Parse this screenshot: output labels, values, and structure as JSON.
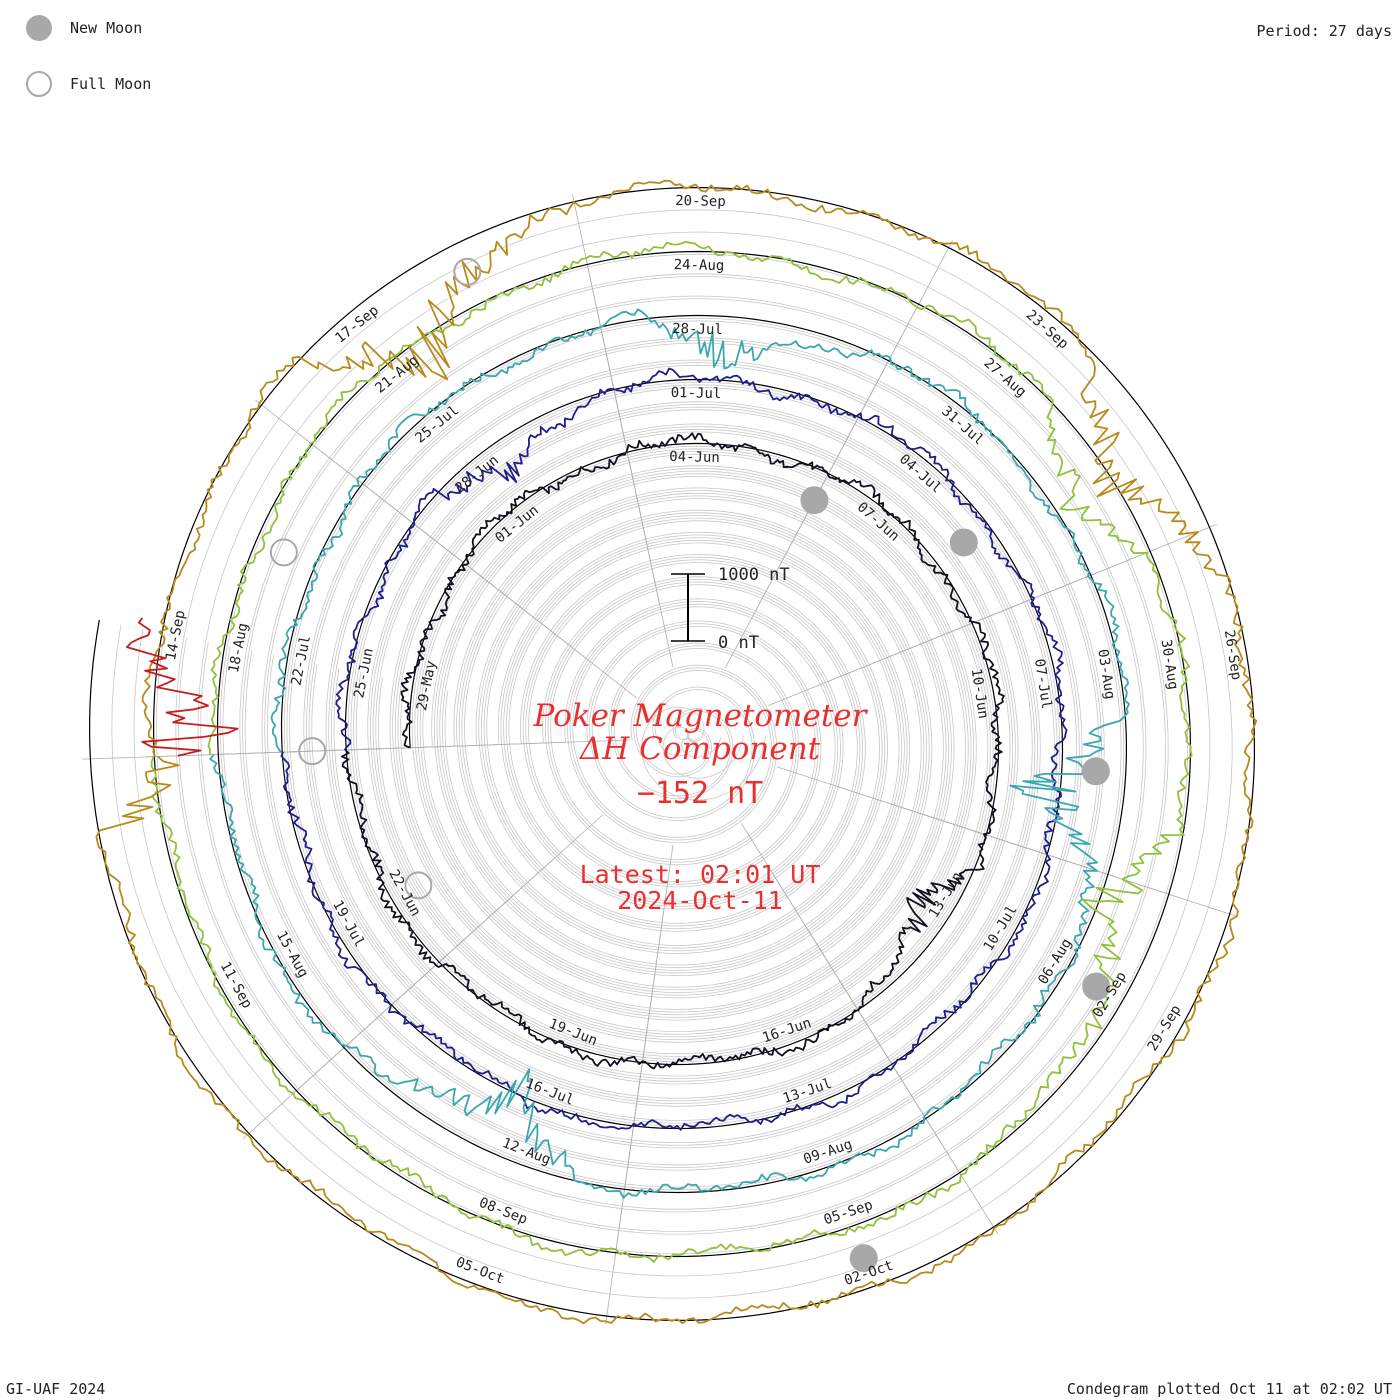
{
  "legend": {
    "new_moon": "New Moon",
    "full_moon": "Full Moon",
    "colors": {
      "new_moon": "#a8a8a8",
      "full_moon": "#a8a8a8"
    }
  },
  "period": "Period: 27 days",
  "footer_left": "GI-UAF 2024",
  "footer_right": "Condegram plotted Oct 11 at 02:02 UT",
  "center": {
    "title_line1": "Poker Magnetometer",
    "title_line2": "ΔH Component",
    "value": "−152 nT",
    "latest_line1": "Latest: 02:01 UT",
    "latest_line2": "2024-Oct-11",
    "color": "#e8302f"
  },
  "scale_bar": {
    "top": "1000 nT",
    "bottom": "0 nT"
  },
  "chart_data": {
    "type": "line",
    "description_free": true,
    "period_days": 27,
    "start": "2024-05-28",
    "end": "2024-10-11",
    "units": "nT",
    "date_labels": [
      "29-May",
      "01-Jun",
      "04-Jun",
      "07-Jun",
      "10-Jun",
      "13-Jun",
      "16-Jun",
      "19-Jun",
      "22-Jun",
      "25-Jun",
      "28-Jun",
      "01-Jul",
      "04-Jul",
      "07-Jul",
      "10-Jul",
      "13-Jul",
      "16-Jul",
      "19-Jul",
      "22-Jul",
      "25-Jul",
      "28-Jul",
      "31-Jul",
      "03-Aug",
      "06-Aug",
      "09-Aug",
      "12-Aug",
      "15-Aug",
      "18-Aug",
      "21-Aug",
      "24-Aug",
      "27-Aug",
      "30-Aug",
      "02-Sep",
      "05-Sep",
      "08-Sep",
      "11-Sep",
      "14-Sep",
      "17-Sep",
      "20-Sep",
      "23-Sep",
      "26-Sep",
      "29-Sep",
      "02-Oct",
      "05-Oct"
    ],
    "revolutions": [
      {
        "start": "2024-05-28",
        "color": "#101020"
      },
      {
        "start": "2024-06-24",
        "color": "#1f1f8c"
      },
      {
        "start": "2024-07-21",
        "color": "#3aa6b0"
      },
      {
        "start": "2024-08-17",
        "color": "#8fc23a"
      },
      {
        "start": "2024-09-13",
        "color": "#b88a1a"
      },
      {
        "start": "2024-10-10",
        "color": "#c41e1e"
      }
    ],
    "disturbances_nT": [
      {
        "date": "2024-06-13",
        "min": -450
      },
      {
        "date": "2024-06-28",
        "min": -400
      },
      {
        "date": "2024-07-28",
        "min": -500
      },
      {
        "date": "2024-08-04",
        "min": -900
      },
      {
        "date": "2024-08-12",
        "min": -700
      },
      {
        "date": "2024-08-28",
        "min": -500
      },
      {
        "date": "2024-09-01",
        "min": -800
      },
      {
        "date": "2024-09-17",
        "min": -1000
      },
      {
        "date": "2024-09-24",
        "min": -800
      },
      {
        "date": "2024-10-10",
        "min": -1400
      }
    ],
    "new_moons": [
      "2024-06-06",
      "2024-07-05",
      "2024-08-04",
      "2024-09-02",
      "2024-10-02"
    ],
    "full_moons": [
      "2024-06-22",
      "2024-07-21",
      "2024-08-19",
      "2024-09-18"
    ],
    "colors": {
      "ring": "#c8c8c8",
      "ref_circle": "#000000",
      "spoke": "#b0b0b0"
    }
  }
}
